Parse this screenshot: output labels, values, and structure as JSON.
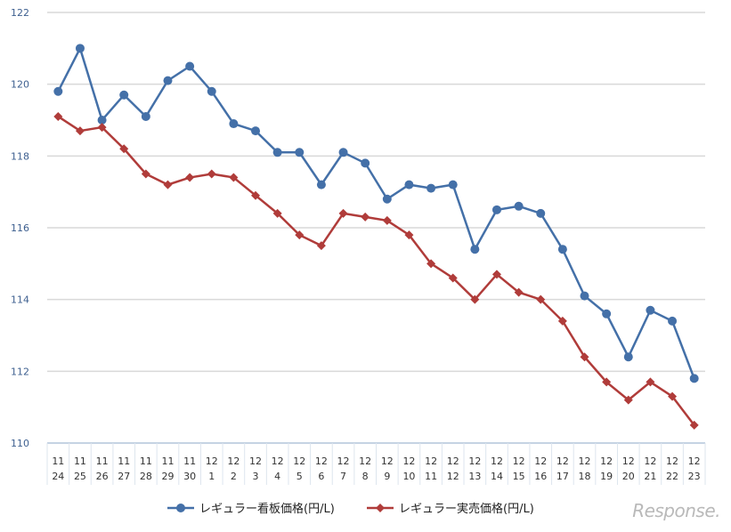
{
  "chart_data": {
    "type": "line",
    "categories": [
      [
        "11",
        "24"
      ],
      [
        "11",
        "25"
      ],
      [
        "11",
        "26"
      ],
      [
        "11",
        "27"
      ],
      [
        "11",
        "28"
      ],
      [
        "11",
        "29"
      ],
      [
        "11",
        "30"
      ],
      [
        "12",
        "1"
      ],
      [
        "12",
        "2"
      ],
      [
        "12",
        "3"
      ],
      [
        "12",
        "4"
      ],
      [
        "12",
        "5"
      ],
      [
        "12",
        "6"
      ],
      [
        "12",
        "7"
      ],
      [
        "12",
        "8"
      ],
      [
        "12",
        "9"
      ],
      [
        "12",
        "10"
      ],
      [
        "12",
        "11"
      ],
      [
        "12",
        "12"
      ],
      [
        "12",
        "13"
      ],
      [
        "12",
        "14"
      ],
      [
        "12",
        "15"
      ],
      [
        "12",
        "16"
      ],
      [
        "12",
        "17"
      ],
      [
        "12",
        "18"
      ],
      [
        "12",
        "19"
      ],
      [
        "12",
        "20"
      ],
      [
        "12",
        "21"
      ],
      [
        "12",
        "22"
      ],
      [
        "12",
        "23"
      ]
    ],
    "series": [
      {
        "name": "レギュラー看板価格(円/L)",
        "color": "#4470a8",
        "marker": "circle",
        "values": [
          119.8,
          121.0,
          119.0,
          119.7,
          119.1,
          120.1,
          120.5,
          119.8,
          118.9,
          118.7,
          118.1,
          118.1,
          117.2,
          118.1,
          117.8,
          116.8,
          117.2,
          117.1,
          117.2,
          115.4,
          116.5,
          116.6,
          116.4,
          115.4,
          114.1,
          113.6,
          112.4,
          113.7,
          113.4,
          111.8
        ]
      },
      {
        "name": "レギュラー実売価格(円/L)",
        "color": "#b03c3a",
        "marker": "diamond",
        "values": [
          119.1,
          118.7,
          118.8,
          118.2,
          117.5,
          117.2,
          117.4,
          117.5,
          117.4,
          116.9,
          116.4,
          115.8,
          115.5,
          116.4,
          116.3,
          116.2,
          115.8,
          115.0,
          114.6,
          114.0,
          114.7,
          114.2,
          114.0,
          113.4,
          112.4,
          111.7,
          111.2,
          111.7,
          111.3,
          110.5
        ]
      }
    ],
    "ylim": [
      110,
      122
    ],
    "yticks": [
      "110",
      "112",
      "114",
      "116",
      "118",
      "120",
      "122"
    ],
    "grid": true,
    "legend": "bottom"
  },
  "watermark": "Response."
}
